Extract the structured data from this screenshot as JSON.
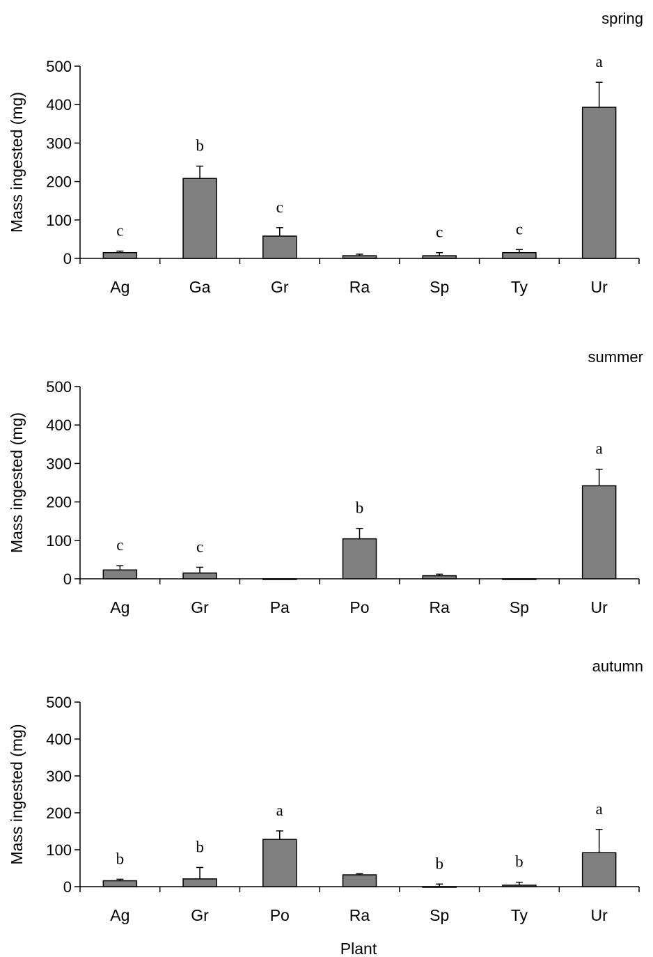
{
  "xlabel": "Plant",
  "colors": {
    "bar": "#808080",
    "axis": "#000000"
  },
  "chart_data": [
    {
      "type": "bar",
      "title": "spring",
      "ylabel": "Mass ingested (mg)",
      "ylim": [
        0,
        500
      ],
      "yticks": [
        0,
        100,
        200,
        300,
        400,
        500
      ],
      "categories": [
        "Ag",
        "Ga",
        "Gr",
        "Ra",
        "Sp",
        "Ty",
        "Ur"
      ],
      "values": [
        15,
        208,
        58,
        7,
        7,
        15,
        393
      ],
      "errors": [
        4,
        32,
        22,
        4,
        8,
        8,
        65
      ],
      "annotations": [
        "c",
        "b",
        "c",
        "",
        "c",
        "c",
        "a"
      ]
    },
    {
      "type": "bar",
      "title": "summer",
      "ylabel": "Mass ingested (mg)",
      "ylim": [
        0,
        500
      ],
      "yticks": [
        0,
        100,
        200,
        300,
        400,
        500
      ],
      "categories": [
        "Ag",
        "Gr",
        "Pa",
        "Po",
        "Ra",
        "Sp",
        "Ur"
      ],
      "values": [
        23,
        15,
        0,
        104,
        8,
        0,
        242
      ],
      "errors": [
        11,
        15,
        0,
        27,
        4,
        0,
        43
      ],
      "annotations": [
        "c",
        "c",
        "",
        "b",
        "",
        "",
        "a"
      ]
    },
    {
      "type": "bar",
      "title": "autumn",
      "ylabel": "Mass ingested (mg)",
      "ylim": [
        0,
        500
      ],
      "yticks": [
        0,
        100,
        200,
        300,
        400,
        500
      ],
      "categories": [
        "Ag",
        "Gr",
        "Po",
        "Ra",
        "Sp",
        "Ty",
        "Ur"
      ],
      "values": [
        16,
        21,
        128,
        32,
        0,
        4,
        92
      ],
      "errors": [
        4,
        31,
        23,
        3,
        7,
        8,
        63
      ],
      "annotations": [
        "b",
        "b",
        "a",
        "",
        "b",
        "b",
        "a"
      ]
    }
  ]
}
